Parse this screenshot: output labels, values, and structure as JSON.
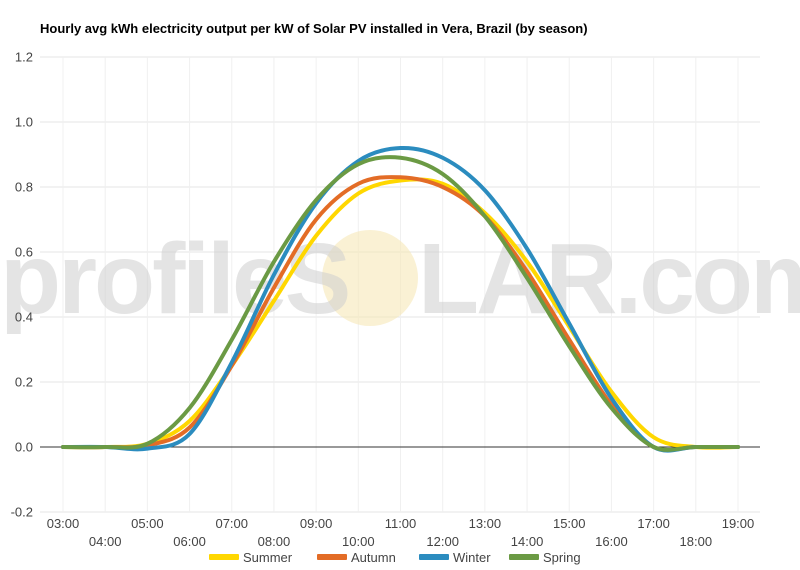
{
  "watermark": {
    "left": "profileS",
    "right": "LAR.com"
  },
  "chart_data": {
    "type": "line",
    "title": "Hourly avg kWh electricity output per kW of Solar PV installed in Vera, Brazil (by season)",
    "xlabel": "",
    "ylabel": "",
    "ylim": [
      -0.2,
      1.2
    ],
    "yticks": [
      "-0.2",
      "0.0",
      "0.2",
      "0.4",
      "0.6",
      "0.8",
      "1.0",
      "1.2"
    ],
    "x": [
      "03:00",
      "04:00",
      "05:00",
      "06:00",
      "07:00",
      "08:00",
      "09:00",
      "10:00",
      "11:00",
      "12:00",
      "13:00",
      "14:00",
      "15:00",
      "16:00",
      "17:00",
      "18:00",
      "19:00"
    ],
    "grid": true,
    "legend_position": "bottom",
    "series": [
      {
        "name": "Summer",
        "color": "#FFD700",
        "values": [
          0,
          0,
          0.01,
          0.08,
          0.25,
          0.45,
          0.65,
          0.78,
          0.82,
          0.81,
          0.72,
          0.57,
          0.37,
          0.17,
          0.03,
          0,
          0
        ]
      },
      {
        "name": "Autumn",
        "color": "#E36C26",
        "values": [
          0,
          0,
          0.005,
          0.06,
          0.25,
          0.49,
          0.7,
          0.81,
          0.83,
          0.8,
          0.71,
          0.54,
          0.33,
          0.13,
          0,
          0,
          0
        ]
      },
      {
        "name": "Winter",
        "color": "#2B8CBF",
        "values": [
          0,
          0,
          -0.005,
          0.04,
          0.26,
          0.53,
          0.75,
          0.88,
          0.92,
          0.89,
          0.79,
          0.61,
          0.38,
          0.15,
          0,
          0,
          0
        ]
      },
      {
        "name": "Spring",
        "color": "#6B9A44",
        "values": [
          0,
          0,
          0.01,
          0.12,
          0.33,
          0.57,
          0.76,
          0.87,
          0.89,
          0.84,
          0.71,
          0.52,
          0.31,
          0.12,
          0,
          0,
          0
        ]
      }
    ]
  }
}
